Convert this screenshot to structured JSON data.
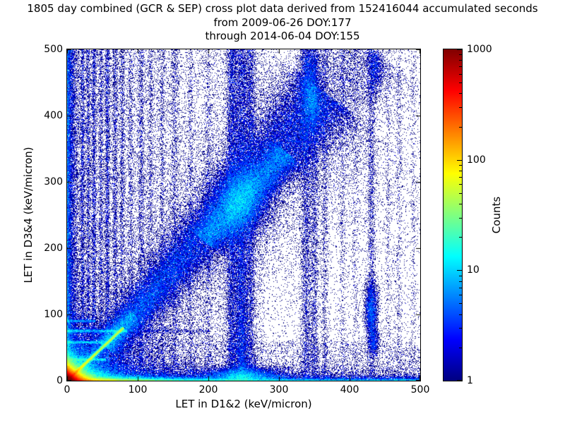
{
  "title": {
    "line1": "1805 day combined (GCR & SEP) cross plot data derived from 152416044 accumulated seconds",
    "line2": "from 2009-06-26 DOY:177",
    "line3": "through 2014-06-04 DOY:155"
  },
  "axes": {
    "xlabel": "LET in D1&2 (keV/micron)",
    "ylabel": "LET in D3&4 (keV/micron)",
    "xlim": [
      0,
      500
    ],
    "ylim": [
      0,
      500
    ],
    "xticks": [
      0,
      100,
      200,
      300,
      400,
      500
    ],
    "yticks": [
      0,
      100,
      200,
      300,
      400,
      500
    ]
  },
  "colorbar": {
    "label": "Counts",
    "scale": "log",
    "min": 1,
    "max": 1000,
    "ticks": [
      1,
      10,
      100,
      1000
    ],
    "colormap": {
      "name": "jet",
      "positions": [
        0,
        0.125,
        0.375,
        0.625,
        0.875,
        1
      ],
      "stops": [
        "#000080",
        "#0000ff",
        "#00ffff",
        "#ffff00",
        "#ff0000",
        "#800000"
      ]
    }
  },
  "chart_data": {
    "type": "heatmap",
    "title": "1805 day combined (GCR & SEP) cross plot data derived from 152416044 accumulated seconds from 2009-06-26 DOY:177 through 2014-06-04 DOY:155",
    "xlabel": "LET in D1&2 (keV/micron)",
    "ylabel": "LET in D3&4 (keV/micron)",
    "xlim": [
      0,
      500
    ],
    "ylim": [
      0,
      500
    ],
    "colorbar_label": "Counts",
    "count_range": [
      1,
      1000
    ],
    "scale": "log",
    "grid": false,
    "seed": 42,
    "description": "2D density cross plot: intense red/orange hotspot at origin, bright unity diagonal to ~(80,80), broad blue diagonal band from ~(60,55) to ~(430,500) densest near (245,270), dense vertical band near x=230-260, vertical streaks near x=340 and x=430, dense bottom row and left column, sparse single-count blue noise everywhere.",
    "features": [
      {
        "name": "origin-hotspot",
        "kind": "exp2d",
        "x0": 0,
        "y0": 0,
        "sx": 7,
        "sy": 6,
        "n": 130000
      },
      {
        "name": "origin-halo",
        "kind": "exp2d",
        "x0": 0,
        "y0": 0,
        "sx": 22,
        "sy": 16,
        "n": 30000
      },
      {
        "name": "origin-wide-halo",
        "kind": "exp2d",
        "x0": 0,
        "y0": 0,
        "sx": 55,
        "sy": 40,
        "n": 12000
      },
      {
        "name": "bottom-hot-streak",
        "kind": "hband",
        "sy": 2.5,
        "xdecay": 60,
        "n": 22000
      },
      {
        "name": "unity-diagonal",
        "kind": "line",
        "x1": 0,
        "y1": 0,
        "x2": 80,
        "y2": 80,
        "w": 1.3,
        "n": 20000,
        "taper": 1.4
      },
      {
        "name": "unity-diagonal-halo",
        "kind": "line",
        "x1": 0,
        "y1": 0,
        "x2": 95,
        "y2": 100,
        "w": 7,
        "n": 7000
      },
      {
        "name": "main-band",
        "kind": "band",
        "x1": 55,
        "y1": 50,
        "x2": 365,
        "y2": 435,
        "w1": 10,
        "w2": 32,
        "n": 55000
      },
      {
        "name": "band-core",
        "kind": "line",
        "x1": 195,
        "y1": 210,
        "x2": 310,
        "y2": 345,
        "w": 14,
        "n": 22000
      },
      {
        "name": "band-knot",
        "kind": "blob",
        "x": 245,
        "y": 270,
        "sx": 22,
        "sy": 28,
        "n": 12000
      },
      {
        "name": "band-upper",
        "kind": "band",
        "x1": 300,
        "y1": 330,
        "x2": 430,
        "y2": 500,
        "w1": 25,
        "w2": 40,
        "n": 8000
      },
      {
        "name": "band-diffuse-halo",
        "kind": "band",
        "x1": 50,
        "y1": 30,
        "x2": 380,
        "y2": 420,
        "w1": 25,
        "w2": 80,
        "n": 14000
      },
      {
        "name": "bottom-line",
        "kind": "hband",
        "sy": 2,
        "x1": 0,
        "x2": 500,
        "n": 10000
      },
      {
        "name": "bottom-spread",
        "kind": "hband",
        "sy": 8,
        "xdecay": 300,
        "n": 15000
      },
      {
        "name": "bottom-bump",
        "kind": "blob",
        "x": 250,
        "y": 6,
        "sx": 28,
        "sy": 7,
        "n": 9000
      },
      {
        "name": "left-column",
        "kind": "vband",
        "sx": 4,
        "y1": 0,
        "y2": 500,
        "n": 10000
      },
      {
        "name": "left-column-halo",
        "kind": "vband",
        "sx": 12,
        "y1": 0,
        "y2": 500,
        "n": 6000
      },
      {
        "kind": "vstreak",
        "x": 22,
        "sx": 1.5,
        "n": 1800
      },
      {
        "kind": "vstreak",
        "x": 30,
        "sx": 1.5,
        "n": 1500
      },
      {
        "kind": "vstreak",
        "x": 38,
        "sx": 1.8,
        "n": 2200
      },
      {
        "kind": "vstreak",
        "x": 48,
        "sx": 1.8,
        "n": 1600
      },
      {
        "kind": "vstreak",
        "x": 57,
        "sx": 2,
        "n": 2600
      },
      {
        "kind": "vstreak",
        "x": 68,
        "sx": 2,
        "n": 1800
      },
      {
        "kind": "vstreak",
        "x": 78,
        "sx": 2,
        "n": 1400
      },
      {
        "kind": "vstreak",
        "x": 90,
        "sx": 2,
        "n": 1000
      },
      {
        "kind": "vstreak",
        "x": 105,
        "sx": 2.5,
        "n": 1600
      },
      {
        "kind": "vstreak",
        "x": 118,
        "sx": 2,
        "n": 900
      },
      {
        "kind": "vstreak",
        "x": 135,
        "sx": 2,
        "n": 800
      },
      {
        "kind": "vstreak",
        "x": 152,
        "sx": 2.5,
        "n": 1100
      },
      {
        "kind": "vstreak",
        "x": 175,
        "sx": 2,
        "n": 700
      },
      {
        "kind": "vstreak",
        "x": 200,
        "sx": 2.5,
        "n": 800
      },
      {
        "name": "vertical-band-230",
        "kind": "vstreak",
        "x": 233,
        "sx": 4,
        "n": 6000
      },
      {
        "name": "vertical-band-247",
        "kind": "vstreak",
        "x": 247,
        "sx": 6,
        "n": 8000
      },
      {
        "kind": "vstreak",
        "x": 247,
        "sx": 5,
        "n": 4000,
        "ydecay": 150
      },
      {
        "name": "vertical-band-260",
        "kind": "vstreak",
        "x": 260,
        "sx": 4,
        "n": 4000
      },
      {
        "name": "vertical-streak-338",
        "kind": "vstreak",
        "x": 338,
        "sx": 4,
        "n": 3500
      },
      {
        "kind": "vstreak",
        "x": 350,
        "sx": 3.5,
        "n": 2500
      },
      {
        "kind": "blob",
        "x": 344,
        "y": 455,
        "sx": 9,
        "sy": 30,
        "n": 4000
      },
      {
        "kind": "blob",
        "x": 347,
        "y": 415,
        "sx": 7,
        "sy": 20,
        "n": 2000
      },
      {
        "kind": "vstreak",
        "x": 365,
        "sx": 2.5,
        "n": 1200
      },
      {
        "name": "vertical-streak-431",
        "kind": "vstreak",
        "x": 431,
        "sx": 3,
        "n": 2200
      },
      {
        "kind": "blob",
        "x": 431,
        "y": 108,
        "sx": 5,
        "sy": 22,
        "n": 2600
      },
      {
        "kind": "blob",
        "x": 434,
        "y": 60,
        "sx": 4,
        "sy": 12,
        "n": 800
      },
      {
        "kind": "blob",
        "x": 437,
        "y": 470,
        "sx": 6,
        "sy": 20,
        "n": 1200
      },
      {
        "kind": "vstreak",
        "x": 390,
        "sx": 2.5,
        "n": 600
      },
      {
        "kind": "vstreak",
        "x": 408,
        "sx": 2.5,
        "n": 500
      },
      {
        "kind": "vstreak",
        "x": 455,
        "sx": 2.5,
        "n": 500
      },
      {
        "kind": "vstreak",
        "x": 470,
        "sx": 2.5,
        "n": 600
      },
      {
        "kind": "vstreak",
        "x": 490,
        "sx": 2,
        "n": 400
      },
      {
        "kind": "hstreak",
        "y": 75,
        "sy": 1.5,
        "x1": 0,
        "x2": 85,
        "n": 2200
      },
      {
        "kind": "hstreak",
        "y": 75,
        "sy": 2,
        "x1": 0,
        "x2": 200,
        "n": 600
      },
      {
        "kind": "hstreak",
        "y": 58,
        "sy": 1.2,
        "x1": 0,
        "x2": 50,
        "n": 1200
      },
      {
        "kind": "hstreak",
        "y": 32,
        "sy": 1.2,
        "x1": 0,
        "x2": 55,
        "n": 1500
      },
      {
        "kind": "hstreak",
        "y": 90,
        "sy": 1.2,
        "x1": 0,
        "x2": 40,
        "n": 700
      },
      {
        "name": "background-noise",
        "kind": "uniform",
        "x1": 0,
        "x2": 500,
        "y1": 0,
        "y2": 500,
        "n": 14000
      },
      {
        "name": "background-left",
        "kind": "uniform",
        "x1": 0,
        "x2": 280,
        "y1": 0,
        "y2": 500,
        "n": 9000
      },
      {
        "name": "background-bottom",
        "kind": "uniform",
        "x1": 0,
        "x2": 500,
        "y1": 0,
        "y2": 60,
        "n": 4000
      },
      {
        "name": "background-upperleft",
        "kind": "uniform",
        "x1": 0,
        "x2": 160,
        "y1": 0,
        "y2": 500,
        "n": 4000
      }
    ]
  }
}
